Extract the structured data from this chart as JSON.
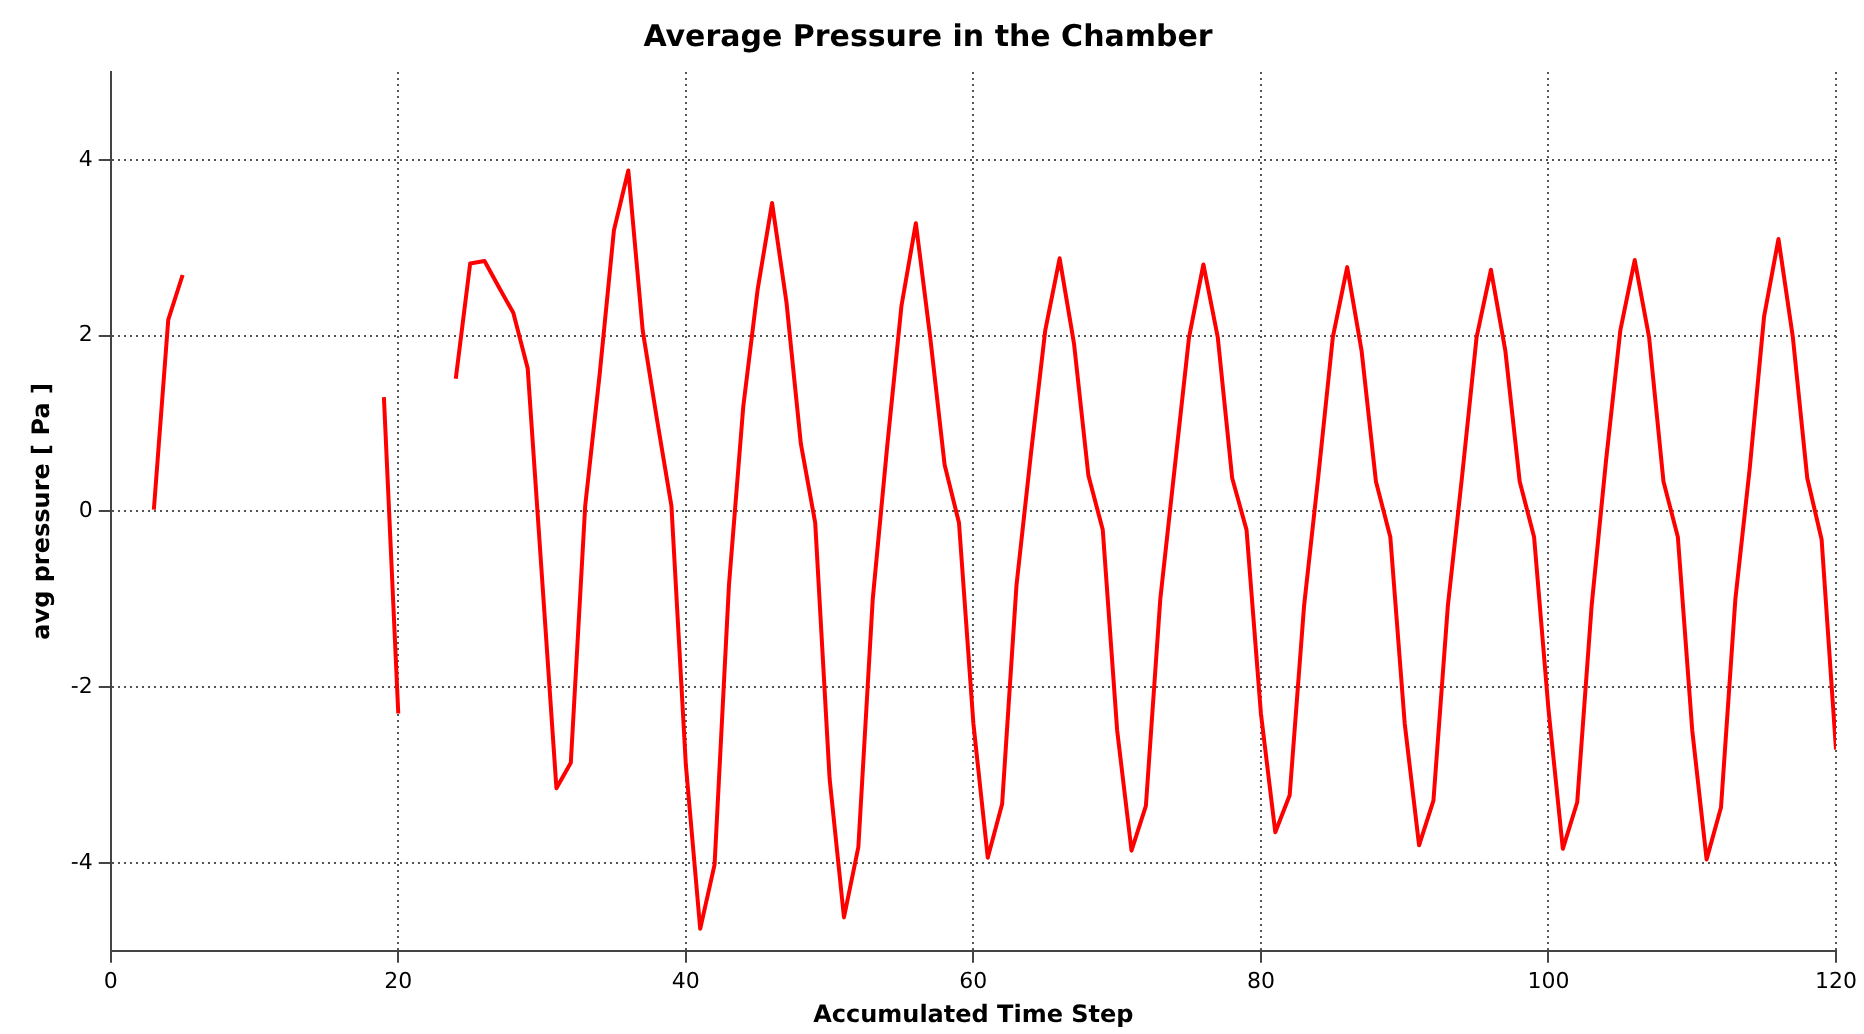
{
  "chart_data": {
    "type": "line",
    "title": "Average Pressure in the Chamber",
    "xlabel": "Accumulated Time Step",
    "ylabel": "avg pressure [ Pa ]",
    "x": [
      3,
      4,
      5,
      6,
      7,
      8,
      9,
      10,
      11,
      12,
      13,
      14,
      15,
      16,
      17,
      18,
      19,
      20,
      21,
      22,
      23,
      24,
      25,
      26,
      27,
      28,
      29,
      30,
      31,
      32,
      33,
      34,
      35,
      36,
      37,
      38,
      39,
      40,
      41,
      42,
      43,
      44,
      45,
      46,
      47,
      48,
      49,
      50,
      51,
      52,
      53,
      54,
      55,
      56,
      57,
      58,
      59,
      60,
      61,
      62,
      63,
      64,
      65,
      66,
      67,
      68,
      69,
      70,
      71,
      72,
      73,
      74,
      75,
      76,
      77,
      78,
      79,
      80,
      81,
      82,
      83,
      84,
      85,
      86,
      87,
      88,
      89,
      90,
      91,
      92,
      93,
      94,
      95,
      96,
      97,
      98,
      99,
      100,
      101,
      102,
      103,
      104,
      105,
      106,
      107,
      108,
      109,
      110,
      111,
      112,
      113,
      114,
      115,
      116,
      117,
      118,
      119,
      120
    ],
    "series": [
      {
        "color": "#ff0000",
        "values": [
          0.02,
          2.18,
          2.69,
          null,
          null,
          null,
          null,
          null,
          null,
          null,
          null,
          null,
          null,
          null,
          null,
          null,
          1.3,
          -2.3,
          null,
          null,
          null,
          1.51,
          2.82,
          2.85,
          2.55,
          2.26,
          1.63,
          -0.76,
          -3.15,
          -2.86,
          0.06,
          1.55,
          3.2,
          3.88,
          2.06,
          1.04,
          0.06,
          -2.88,
          -4.75,
          -4.02,
          -0.84,
          1.2,
          2.53,
          3.51,
          2.38,
          0.77,
          -0.13,
          -3.04,
          -4.62,
          -3.82,
          -1.0,
          0.73,
          2.34,
          3.28,
          1.98,
          0.53,
          -0.13,
          -2.41,
          -3.94,
          -3.33,
          -0.84,
          0.65,
          2.06,
          2.88,
          1.91,
          0.41,
          -0.21,
          -2.49,
          -3.86,
          -3.35,
          -1.0,
          0.49,
          1.98,
          2.81,
          1.98,
          0.38,
          -0.21,
          -2.3,
          -3.65,
          -3.23,
          -1.08,
          0.41,
          1.98,
          2.78,
          1.83,
          0.34,
          -0.29,
          -2.41,
          -3.8,
          -3.29,
          -1.08,
          0.41,
          1.98,
          2.75,
          1.83,
          0.34,
          -0.29,
          -2.25,
          -3.84,
          -3.31,
          -1.08,
          0.57,
          2.06,
          2.86,
          1.98,
          0.34,
          -0.29,
          -2.49,
          -3.96,
          -3.37,
          -1.0,
          0.49,
          2.22,
          3.1,
          1.98,
          0.38,
          -0.32,
          -2.71
        ]
      }
    ],
    "xlim": [
      0,
      120
    ],
    "xticks": [
      0,
      20,
      40,
      60,
      80,
      100,
      120
    ],
    "ylim": [
      -5,
      5
    ],
    "yticks": [
      -4,
      -2,
      0,
      2,
      4
    ],
    "grid": true,
    "legend": false,
    "marker": "none",
    "line_style": "solid"
  }
}
